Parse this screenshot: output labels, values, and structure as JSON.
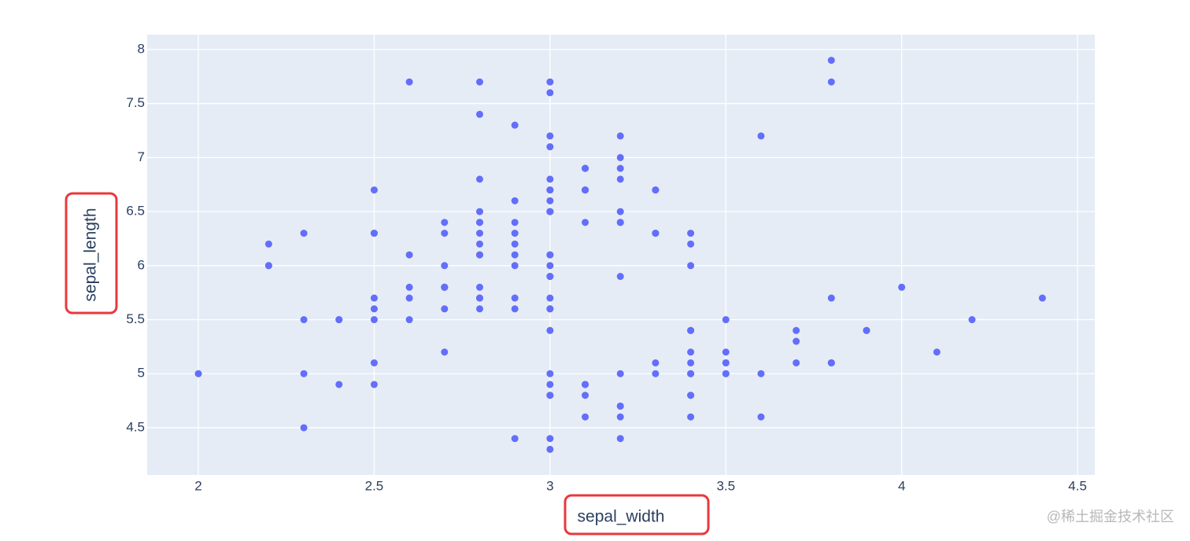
{
  "chart_data": {
    "type": "scatter",
    "x_label": "sepal_width",
    "y_label": "sepal_length",
    "color": "#636efa",
    "grid": true,
    "xlim": [
      1.8545,
      4.549
    ],
    "ylim": [
      4.063,
      8.138
    ],
    "xticks": [
      2,
      2.5,
      3,
      3.5,
      4,
      4.5
    ],
    "yticks": [
      4.5,
      5,
      5.5,
      6,
      6.5,
      7,
      7.5,
      8
    ],
    "x": [
      3.5,
      3.0,
      3.2,
      3.1,
      3.6,
      3.9,
      3.4,
      3.4,
      2.9,
      3.1,
      3.7,
      3.4,
      3.0,
      3.0,
      4.0,
      4.4,
      3.9,
      3.5,
      3.8,
      3.8,
      3.4,
      3.7,
      3.6,
      3.3,
      3.4,
      3.0,
      3.4,
      3.5,
      3.4,
      3.2,
      3.1,
      3.4,
      4.1,
      4.2,
      3.1,
      3.2,
      3.5,
      3.1,
      3.0,
      3.4,
      3.5,
      2.3,
      3.2,
      3.5,
      3.8,
      3.0,
      3.8,
      3.2,
      3.7,
      3.3,
      3.2,
      3.2,
      3.1,
      2.3,
      2.8,
      2.8,
      3.3,
      2.4,
      2.9,
      2.7,
      2.0,
      3.0,
      2.2,
      2.9,
      2.9,
      3.1,
      3.0,
      2.7,
      2.2,
      2.5,
      3.2,
      2.8,
      2.5,
      2.8,
      2.9,
      3.0,
      2.8,
      3.0,
      2.9,
      2.6,
      2.4,
      2.4,
      2.7,
      2.7,
      3.0,
      3.4,
      3.1,
      2.3,
      3.0,
      2.5,
      2.6,
      3.0,
      2.6,
      2.3,
      2.7,
      3.0,
      2.9,
      2.9,
      2.5,
      2.8,
      3.3,
      2.7,
      3.0,
      2.9,
      3.0,
      3.0,
      2.5,
      2.9,
      2.5,
      3.6,
      3.2,
      2.7,
      3.0,
      2.5,
      2.8,
      3.2,
      3.0,
      3.8,
      2.6,
      2.2,
      3.2,
      2.8,
      2.8,
      2.7,
      3.3,
      3.2,
      2.8,
      3.0,
      2.8,
      3.0,
      2.8,
      3.8,
      2.8,
      2.8,
      2.6,
      3.0,
      3.4,
      3.1,
      3.0,
      3.1,
      3.1,
      3.1,
      2.7,
      3.2,
      3.3,
      3.0,
      2.5,
      3.0,
      3.4,
      3.0
    ],
    "values": [
      5.1,
      4.9,
      4.7,
      4.6,
      5.0,
      5.4,
      4.6,
      5.0,
      4.4,
      4.9,
      5.4,
      4.8,
      4.8,
      4.3,
      5.8,
      5.7,
      5.4,
      5.1,
      5.7,
      5.1,
      5.4,
      5.1,
      4.6,
      5.1,
      4.8,
      5.0,
      5.0,
      5.2,
      5.2,
      4.7,
      4.8,
      5.4,
      5.2,
      5.5,
      4.9,
      5.0,
      5.5,
      4.9,
      4.4,
      5.1,
      5.0,
      4.5,
      4.4,
      5.0,
      5.1,
      4.8,
      5.1,
      4.6,
      5.3,
      5.0,
      7.0,
      6.4,
      6.9,
      5.5,
      6.5,
      5.7,
      6.3,
      4.9,
      6.6,
      5.2,
      5.0,
      5.9,
      6.0,
      6.1,
      5.6,
      6.7,
      5.6,
      5.8,
      6.2,
      5.6,
      5.9,
      6.1,
      6.3,
      6.1,
      6.4,
      6.6,
      6.8,
      6.7,
      6.0,
      5.7,
      5.5,
      5.5,
      5.8,
      6.0,
      5.4,
      6.0,
      6.7,
      6.3,
      5.6,
      5.5,
      5.5,
      6.1,
      5.8,
      5.0,
      5.6,
      5.7,
      5.7,
      6.2,
      5.1,
      5.7,
      6.3,
      5.8,
      7.1,
      6.3,
      6.5,
      7.6,
      4.9,
      7.3,
      6.7,
      7.2,
      6.5,
      6.4,
      6.8,
      5.7,
      5.8,
      6.4,
      6.5,
      7.7,
      7.7,
      6.0,
      6.9,
      5.6,
      7.7,
      6.3,
      6.7,
      7.2,
      6.2,
      6.1,
      6.4,
      7.2,
      7.4,
      7.9,
      6.4,
      6.3,
      6.1,
      7.7,
      6.3,
      6.4,
      6.0,
      6.9,
      6.7,
      6.9,
      5.8,
      6.8,
      6.7,
      6.7,
      6.3,
      6.5,
      6.2,
      5.9
    ]
  },
  "watermark": "@稀土掘金技术社区"
}
